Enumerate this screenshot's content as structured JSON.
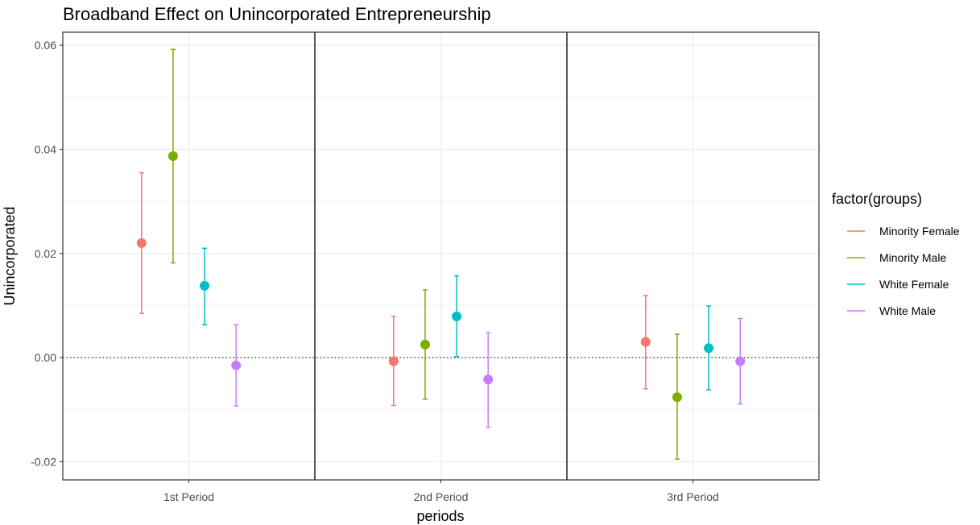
{
  "chart_data": {
    "type": "scatter",
    "title": "Broadband Effect on Unincorporated Entrepreneurship",
    "xlabel": "periods",
    "ylabel": "Unincorporated",
    "categories": [
      "1st Period",
      "2nd Period",
      "3rd Period"
    ],
    "y_ticks": [
      "-0.02",
      "0.00",
      "0.02",
      "0.04",
      "0.06"
    ],
    "ylim": [
      -0.0235,
      0.0625
    ],
    "grid": true,
    "reference_line": 0,
    "legend": {
      "title": "factor(groups)",
      "placement": "right"
    },
    "series": [
      {
        "name": "Minority Female",
        "color": "#F8766D",
        "points": [
          {
            "x": "1st Period",
            "y": 0.022,
            "lower": 0.0085,
            "upper": 0.0355
          },
          {
            "x": "2nd Period",
            "y": -0.0007,
            "lower": -0.0092,
            "upper": 0.0079
          },
          {
            "x": "3rd Period",
            "y": 0.003,
            "lower": -0.006,
            "upper": 0.0119
          }
        ]
      },
      {
        "name": "Minority Male",
        "color": "#7CAE00",
        "points": [
          {
            "x": "1st Period",
            "y": 0.0387,
            "lower": 0.0182,
            "upper": 0.0592
          },
          {
            "x": "2nd Period",
            "y": 0.0025,
            "lower": -0.008,
            "upper": 0.013
          },
          {
            "x": "3rd Period",
            "y": -0.0076,
            "lower": -0.0195,
            "upper": 0.0045
          }
        ]
      },
      {
        "name": "White Female",
        "color": "#00BFC4",
        "points": [
          {
            "x": "1st Period",
            "y": 0.0138,
            "lower": 0.0063,
            "upper": 0.021
          },
          {
            "x": "2nd Period",
            "y": 0.0079,
            "lower": 0.0002,
            "upper": 0.0157
          },
          {
            "x": "3rd Period",
            "y": 0.0018,
            "lower": -0.0062,
            "upper": 0.0099
          }
        ]
      },
      {
        "name": "White Male",
        "color": "#C77CFF",
        "points": [
          {
            "x": "1st Period",
            "y": -0.0015,
            "lower": -0.0093,
            "upper": 0.0063
          },
          {
            "x": "2nd Period",
            "y": -0.0042,
            "lower": -0.0134,
            "upper": 0.0048
          },
          {
            "x": "3rd Period",
            "y": -0.0007,
            "lower": -0.0089,
            "upper": 0.0075
          }
        ]
      }
    ]
  }
}
